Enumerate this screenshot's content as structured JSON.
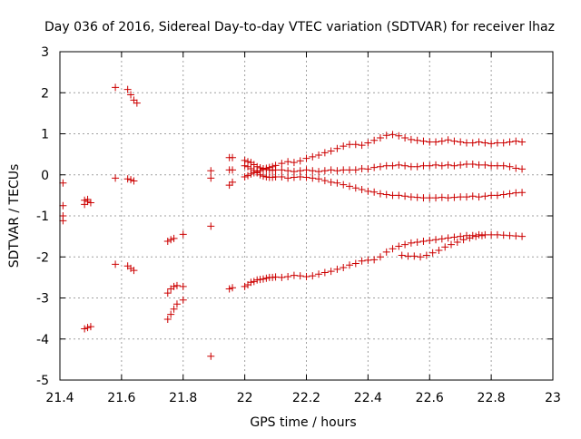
{
  "chart_data": {
    "type": "scatter",
    "title": "Day 036 of 2016, Sidereal Day-to-day VTEC variation (SDTVAR) for receiver lhaz",
    "xlabel": "GPS time / hours",
    "ylabel": "SDTVAR / TECUs",
    "xlim": [
      21.4,
      23.0
    ],
    "ylim": [
      -5,
      3
    ],
    "xticks": [
      "21.4",
      "21.6",
      "21.8",
      "22",
      "22.2",
      "22.4",
      "22.6",
      "22.8",
      "23"
    ],
    "yticks": [
      "3",
      "2",
      "1",
      "0",
      "-1",
      "-2",
      "-3",
      "-4",
      "-5"
    ],
    "grid": true,
    "marker": "+",
    "color": "#cc0000",
    "series": [
      {
        "name": "satellite tracks",
        "points": [
          [
            21.41,
            -0.2
          ],
          [
            21.41,
            -0.75
          ],
          [
            21.41,
            -1.0
          ],
          [
            21.41,
            -1.12
          ],
          [
            21.48,
            -0.62
          ],
          [
            21.48,
            -0.72
          ],
          [
            21.49,
            -0.65
          ],
          [
            21.5,
            -0.68
          ],
          [
            21.49,
            -0.6
          ],
          [
            21.48,
            -3.75
          ],
          [
            21.49,
            -3.72
          ],
          [
            21.5,
            -3.7
          ],
          [
            21.58,
            2.13
          ],
          [
            21.62,
            2.08
          ],
          [
            21.63,
            1.95
          ],
          [
            21.64,
            1.82
          ],
          [
            21.65,
            1.75
          ],
          [
            21.58,
            -0.08
          ],
          [
            21.62,
            -0.1
          ],
          [
            21.63,
            -0.12
          ],
          [
            21.64,
            -0.15
          ],
          [
            21.58,
            -2.18
          ],
          [
            21.62,
            -2.22
          ],
          [
            21.63,
            -2.28
          ],
          [
            21.64,
            -2.33
          ],
          [
            21.75,
            -1.62
          ],
          [
            21.76,
            -1.58
          ],
          [
            21.77,
            -1.55
          ],
          [
            21.8,
            -1.45
          ],
          [
            21.75,
            -2.88
          ],
          [
            21.76,
            -2.78
          ],
          [
            21.77,
            -2.72
          ],
          [
            21.78,
            -2.7
          ],
          [
            21.8,
            -2.72
          ],
          [
            21.75,
            -3.52
          ],
          [
            21.76,
            -3.4
          ],
          [
            21.77,
            -3.27
          ],
          [
            21.78,
            -3.15
          ],
          [
            21.8,
            -3.05
          ],
          [
            21.89,
            0.1
          ],
          [
            21.89,
            -0.08
          ],
          [
            21.89,
            -1.25
          ],
          [
            21.89,
            -4.42
          ],
          [
            21.95,
            0.42
          ],
          [
            21.96,
            0.42
          ],
          [
            21.95,
            0.12
          ],
          [
            21.96,
            0.12
          ],
          [
            21.95,
            -0.25
          ],
          [
            21.96,
            -0.18
          ],
          [
            21.95,
            -2.78
          ],
          [
            21.96,
            -2.75
          ],
          [
            22.0,
            0.35
          ],
          [
            22.01,
            0.32
          ],
          [
            22.02,
            0.3
          ],
          [
            22.03,
            0.25
          ],
          [
            22.04,
            0.2
          ],
          [
            22.05,
            0.17
          ],
          [
            22.06,
            0.15
          ],
          [
            22.07,
            0.13
          ],
          [
            22.08,
            0.12
          ],
          [
            22.09,
            0.11
          ],
          [
            22.1,
            0.12
          ],
          [
            22.0,
            -0.05
          ],
          [
            22.01,
            -0.02
          ],
          [
            22.02,
            0.02
          ],
          [
            22.03,
            0.05
          ],
          [
            22.04,
            0.08
          ],
          [
            22.05,
            0.1
          ],
          [
            22.06,
            0.13
          ],
          [
            22.07,
            0.16
          ],
          [
            22.08,
            0.18
          ],
          [
            22.09,
            0.2
          ],
          [
            22.1,
            0.23
          ],
          [
            22.0,
            0.22
          ],
          [
            22.01,
            0.2
          ],
          [
            22.02,
            0.15
          ],
          [
            22.03,
            0.1
          ],
          [
            22.04,
            0.05
          ],
          [
            22.05,
            0.0
          ],
          [
            22.06,
            -0.03
          ],
          [
            22.07,
            -0.05
          ],
          [
            22.08,
            -0.06
          ],
          [
            22.09,
            -0.06
          ],
          [
            22.1,
            -0.05
          ],
          [
            22.12,
            0.28
          ],
          [
            22.14,
            0.32
          ],
          [
            22.16,
            0.3
          ],
          [
            22.18,
            0.34
          ],
          [
            22.2,
            0.4
          ],
          [
            22.22,
            0.44
          ],
          [
            22.24,
            0.48
          ],
          [
            22.26,
            0.54
          ],
          [
            22.28,
            0.58
          ],
          [
            22.3,
            0.64
          ],
          [
            22.32,
            0.7
          ],
          [
            22.34,
            0.74
          ],
          [
            22.36,
            0.74
          ],
          [
            22.38,
            0.72
          ],
          [
            22.4,
            0.78
          ],
          [
            22.42,
            0.84
          ],
          [
            22.44,
            0.9
          ],
          [
            22.46,
            0.96
          ],
          [
            22.48,
            0.98
          ],
          [
            22.5,
            0.95
          ],
          [
            22.52,
            0.9
          ],
          [
            22.54,
            0.86
          ],
          [
            22.56,
            0.84
          ],
          [
            22.58,
            0.82
          ],
          [
            22.6,
            0.8
          ],
          [
            22.62,
            0.8
          ],
          [
            22.64,
            0.82
          ],
          [
            22.66,
            0.85
          ],
          [
            22.68,
            0.82
          ],
          [
            22.7,
            0.8
          ],
          [
            22.72,
            0.78
          ],
          [
            22.74,
            0.78
          ],
          [
            22.76,
            0.8
          ],
          [
            22.78,
            0.78
          ],
          [
            22.8,
            0.76
          ],
          [
            22.82,
            0.78
          ],
          [
            22.84,
            0.78
          ],
          [
            22.86,
            0.8
          ],
          [
            22.88,
            0.82
          ],
          [
            22.9,
            0.8
          ],
          [
            22.12,
            0.12
          ],
          [
            22.14,
            0.1
          ],
          [
            22.16,
            0.08
          ],
          [
            22.18,
            0.1
          ],
          [
            22.2,
            0.12
          ],
          [
            22.22,
            0.1
          ],
          [
            22.24,
            0.08
          ],
          [
            22.26,
            0.1
          ],
          [
            22.28,
            0.12
          ],
          [
            22.3,
            0.1
          ],
          [
            22.32,
            0.12
          ],
          [
            22.34,
            0.12
          ],
          [
            22.36,
            0.12
          ],
          [
            22.38,
            0.15
          ],
          [
            22.4,
            0.14
          ],
          [
            22.42,
            0.18
          ],
          [
            22.44,
            0.2
          ],
          [
            22.46,
            0.22
          ],
          [
            22.48,
            0.22
          ],
          [
            22.5,
            0.24
          ],
          [
            22.52,
            0.22
          ],
          [
            22.54,
            0.2
          ],
          [
            22.56,
            0.2
          ],
          [
            22.58,
            0.22
          ],
          [
            22.6,
            0.22
          ],
          [
            22.62,
            0.24
          ],
          [
            22.64,
            0.22
          ],
          [
            22.66,
            0.24
          ],
          [
            22.68,
            0.22
          ],
          [
            22.7,
            0.24
          ],
          [
            22.72,
            0.26
          ],
          [
            22.74,
            0.26
          ],
          [
            22.76,
            0.24
          ],
          [
            22.78,
            0.24
          ],
          [
            22.8,
            0.22
          ],
          [
            22.82,
            0.22
          ],
          [
            22.84,
            0.22
          ],
          [
            22.86,
            0.2
          ],
          [
            22.88,
            0.16
          ],
          [
            22.9,
            0.14
          ],
          [
            22.12,
            -0.05
          ],
          [
            22.14,
            -0.08
          ],
          [
            22.16,
            -0.06
          ],
          [
            22.18,
            -0.05
          ],
          [
            22.2,
            -0.06
          ],
          [
            22.22,
            -0.08
          ],
          [
            22.24,
            -0.1
          ],
          [
            22.26,
            -0.14
          ],
          [
            22.28,
            -0.18
          ],
          [
            22.3,
            -0.2
          ],
          [
            22.32,
            -0.24
          ],
          [
            22.34,
            -0.28
          ],
          [
            22.36,
            -0.32
          ],
          [
            22.38,
            -0.36
          ],
          [
            22.4,
            -0.4
          ],
          [
            22.42,
            -0.42
          ],
          [
            22.44,
            -0.46
          ],
          [
            22.46,
            -0.48
          ],
          [
            22.48,
            -0.5
          ],
          [
            22.5,
            -0.5
          ],
          [
            22.52,
            -0.52
          ],
          [
            22.54,
            -0.54
          ],
          [
            22.56,
            -0.55
          ],
          [
            22.58,
            -0.56
          ],
          [
            22.6,
            -0.56
          ],
          [
            22.62,
            -0.56
          ],
          [
            22.64,
            -0.55
          ],
          [
            22.66,
            -0.56
          ],
          [
            22.68,
            -0.55
          ],
          [
            22.7,
            -0.54
          ],
          [
            22.72,
            -0.54
          ],
          [
            22.74,
            -0.52
          ],
          [
            22.76,
            -0.54
          ],
          [
            22.78,
            -0.52
          ],
          [
            22.8,
            -0.5
          ],
          [
            22.82,
            -0.5
          ],
          [
            22.84,
            -0.48
          ],
          [
            22.86,
            -0.46
          ],
          [
            22.88,
            -0.44
          ],
          [
            22.9,
            -0.43
          ],
          [
            22.0,
            -2.72
          ],
          [
            22.01,
            -2.68
          ],
          [
            22.02,
            -2.62
          ],
          [
            22.03,
            -2.6
          ],
          [
            22.04,
            -2.56
          ],
          [
            22.05,
            -2.55
          ],
          [
            22.06,
            -2.54
          ],
          [
            22.07,
            -2.52
          ],
          [
            22.08,
            -2.5
          ],
          [
            22.09,
            -2.5
          ],
          [
            22.1,
            -2.49
          ],
          [
            22.12,
            -2.5
          ],
          [
            22.14,
            -2.48
          ],
          [
            22.16,
            -2.45
          ],
          [
            22.18,
            -2.46
          ],
          [
            22.2,
            -2.48
          ],
          [
            22.22,
            -2.46
          ],
          [
            22.24,
            -2.42
          ],
          [
            22.26,
            -2.38
          ],
          [
            22.28,
            -2.35
          ],
          [
            22.3,
            -2.3
          ],
          [
            22.32,
            -2.26
          ],
          [
            22.34,
            -2.2
          ],
          [
            22.36,
            -2.16
          ],
          [
            22.38,
            -2.1
          ],
          [
            22.4,
            -2.08
          ],
          [
            22.42,
            -2.07
          ],
          [
            22.44,
            -2.0
          ],
          [
            22.46,
            -1.88
          ],
          [
            22.48,
            -1.8
          ],
          [
            22.5,
            -1.74
          ],
          [
            22.52,
            -1.7
          ],
          [
            22.54,
            -1.66
          ],
          [
            22.56,
            -1.64
          ],
          [
            22.58,
            -1.62
          ],
          [
            22.6,
            -1.6
          ],
          [
            22.62,
            -1.58
          ],
          [
            22.64,
            -1.56
          ],
          [
            22.66,
            -1.54
          ],
          [
            22.68,
            -1.52
          ],
          [
            22.7,
            -1.5
          ],
          [
            22.72,
            -1.48
          ],
          [
            22.74,
            -1.48
          ],
          [
            22.76,
            -1.46
          ],
          [
            22.78,
            -1.46
          ],
          [
            22.8,
            -1.46
          ],
          [
            22.82,
            -1.46
          ],
          [
            22.84,
            -1.47
          ],
          [
            22.86,
            -1.48
          ],
          [
            22.88,
            -1.49
          ],
          [
            22.9,
            -1.5
          ],
          [
            22.51,
            -1.96
          ],
          [
            22.53,
            -1.98
          ],
          [
            22.55,
            -1.98
          ],
          [
            22.57,
            -2.0
          ],
          [
            22.59,
            -1.96
          ],
          [
            22.61,
            -1.9
          ],
          [
            22.63,
            -1.84
          ],
          [
            22.65,
            -1.76
          ],
          [
            22.67,
            -1.7
          ],
          [
            22.69,
            -1.64
          ],
          [
            22.71,
            -1.58
          ],
          [
            22.73,
            -1.54
          ],
          [
            22.75,
            -1.5
          ],
          [
            22.77,
            -1.48
          ]
        ]
      }
    ]
  }
}
